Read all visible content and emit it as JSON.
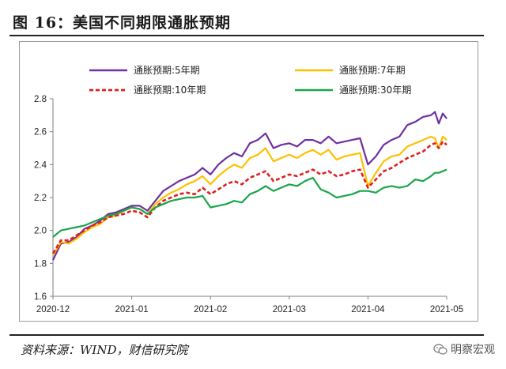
{
  "figure": {
    "title": "图 16：美国不同期限通胀预期",
    "source": "资料来源：WIND，财信研究院",
    "watermark": "明察宏观"
  },
  "chart_data": {
    "type": "line",
    "title": "",
    "xlabel": "",
    "ylabel": "",
    "ylim": [
      1.6,
      2.8
    ],
    "yticks": [
      1.6,
      1.8,
      2.0,
      2.2,
      2.4,
      2.6,
      2.8
    ],
    "x_tick_labels": [
      "2020-12",
      "2021-01",
      "2021-02",
      "2021-03",
      "2021-04",
      "2021-05"
    ],
    "x_tick_positions": [
      0,
      1,
      2,
      3,
      4,
      5
    ],
    "grid": false,
    "legend_position": "top",
    "series": [
      {
        "name": "通胀预期:5年期",
        "color": "#7030a0",
        "dash": "solid",
        "x": [
          0,
          0.1,
          0.2,
          0.3,
          0.4,
          0.5,
          0.6,
          0.7,
          0.8,
          0.9,
          1.0,
          1.1,
          1.2,
          1.3,
          1.4,
          1.5,
          1.6,
          1.7,
          1.8,
          1.9,
          2.0,
          2.1,
          2.2,
          2.3,
          2.4,
          2.5,
          2.6,
          2.7,
          2.8,
          2.9,
          3.0,
          3.1,
          3.2,
          3.3,
          3.4,
          3.5,
          3.6,
          3.7,
          3.8,
          3.9,
          4.0,
          4.1,
          4.2,
          4.3,
          4.4,
          4.5,
          4.6,
          4.7,
          4.8,
          4.85,
          4.9,
          4.95,
          5.0
        ],
        "values": [
          1.82,
          1.92,
          1.93,
          1.96,
          2.01,
          2.03,
          2.06,
          2.1,
          2.11,
          2.13,
          2.15,
          2.15,
          2.12,
          2.18,
          2.24,
          2.27,
          2.3,
          2.32,
          2.34,
          2.38,
          2.34,
          2.4,
          2.44,
          2.47,
          2.45,
          2.53,
          2.55,
          2.59,
          2.5,
          2.52,
          2.53,
          2.51,
          2.55,
          2.55,
          2.53,
          2.57,
          2.53,
          2.54,
          2.55,
          2.56,
          2.4,
          2.45,
          2.52,
          2.55,
          2.57,
          2.64,
          2.66,
          2.69,
          2.7,
          2.72,
          2.65,
          2.71,
          2.68
        ]
      },
      {
        "name": "通胀预期:7年期",
        "color": "#ffc000",
        "dash": "solid",
        "x": [
          0,
          0.1,
          0.2,
          0.3,
          0.4,
          0.5,
          0.6,
          0.7,
          0.8,
          0.9,
          1.0,
          1.1,
          1.2,
          1.3,
          1.4,
          1.5,
          1.6,
          1.7,
          1.8,
          1.9,
          2.0,
          2.1,
          2.2,
          2.3,
          2.4,
          2.5,
          2.6,
          2.7,
          2.8,
          2.9,
          3.0,
          3.1,
          3.2,
          3.3,
          3.4,
          3.5,
          3.6,
          3.7,
          3.8,
          3.9,
          4.0,
          4.1,
          4.2,
          4.3,
          4.4,
          4.5,
          4.6,
          4.7,
          4.8,
          4.85,
          4.9,
          4.95,
          5.0
        ],
        "values": [
          1.85,
          1.93,
          1.92,
          1.95,
          1.99,
          2.02,
          2.04,
          2.08,
          2.09,
          2.12,
          2.14,
          2.13,
          2.1,
          2.16,
          2.2,
          2.23,
          2.25,
          2.28,
          2.3,
          2.33,
          2.28,
          2.33,
          2.37,
          2.4,
          2.38,
          2.44,
          2.46,
          2.5,
          2.42,
          2.44,
          2.46,
          2.44,
          2.47,
          2.49,
          2.46,
          2.49,
          2.43,
          2.45,
          2.46,
          2.47,
          2.27,
          2.35,
          2.42,
          2.45,
          2.46,
          2.51,
          2.53,
          2.55,
          2.57,
          2.56,
          2.5,
          2.57,
          2.55
        ]
      },
      {
        "name": "通胀预期:10年期",
        "color": "#e02020",
        "dash": "dashed",
        "x": [
          0,
          0.1,
          0.2,
          0.3,
          0.4,
          0.5,
          0.6,
          0.7,
          0.8,
          0.9,
          1.0,
          1.1,
          1.2,
          1.3,
          1.4,
          1.5,
          1.6,
          1.7,
          1.8,
          1.9,
          2.0,
          2.1,
          2.2,
          2.3,
          2.4,
          2.5,
          2.6,
          2.7,
          2.8,
          2.9,
          3.0,
          3.1,
          3.2,
          3.3,
          3.4,
          3.5,
          3.6,
          3.7,
          3.8,
          3.9,
          4.0,
          4.1,
          4.2,
          4.3,
          4.4,
          4.5,
          4.6,
          4.7,
          4.8,
          4.85,
          4.9,
          4.95,
          5.0
        ],
        "values": [
          1.86,
          1.94,
          1.94,
          1.97,
          2.0,
          2.03,
          2.05,
          2.08,
          2.09,
          2.1,
          2.12,
          2.11,
          2.08,
          2.14,
          2.18,
          2.2,
          2.22,
          2.23,
          2.22,
          2.26,
          2.22,
          2.25,
          2.28,
          2.3,
          2.28,
          2.32,
          2.34,
          2.36,
          2.3,
          2.32,
          2.34,
          2.33,
          2.35,
          2.37,
          2.34,
          2.36,
          2.33,
          2.34,
          2.36,
          2.37,
          2.26,
          2.31,
          2.36,
          2.38,
          2.41,
          2.44,
          2.46,
          2.48,
          2.52,
          2.53,
          2.5,
          2.54,
          2.52
        ]
      },
      {
        "name": "通胀预期:30年期",
        "color": "#1aa64a",
        "dash": "solid",
        "x": [
          0,
          0.1,
          0.2,
          0.3,
          0.4,
          0.5,
          0.6,
          0.7,
          0.8,
          0.9,
          1.0,
          1.1,
          1.2,
          1.3,
          1.4,
          1.5,
          1.6,
          1.7,
          1.8,
          1.9,
          2.0,
          2.1,
          2.2,
          2.3,
          2.4,
          2.5,
          2.6,
          2.7,
          2.8,
          2.9,
          3.0,
          3.1,
          3.2,
          3.3,
          3.4,
          3.5,
          3.6,
          3.7,
          3.8,
          3.9,
          4.0,
          4.1,
          4.2,
          4.3,
          4.4,
          4.5,
          4.6,
          4.7,
          4.8,
          4.85,
          4.9,
          4.95,
          5.0
        ],
        "values": [
          1.96,
          2.0,
          2.01,
          2.02,
          2.03,
          2.05,
          2.07,
          2.09,
          2.1,
          2.12,
          2.14,
          2.13,
          2.1,
          2.14,
          2.16,
          2.18,
          2.19,
          2.2,
          2.2,
          2.21,
          2.14,
          2.15,
          2.16,
          2.18,
          2.17,
          2.22,
          2.24,
          2.27,
          2.24,
          2.26,
          2.28,
          2.27,
          2.3,
          2.32,
          2.25,
          2.23,
          2.2,
          2.21,
          2.22,
          2.24,
          2.24,
          2.23,
          2.26,
          2.27,
          2.26,
          2.27,
          2.31,
          2.3,
          2.33,
          2.35,
          2.35,
          2.36,
          2.37
        ]
      }
    ]
  }
}
